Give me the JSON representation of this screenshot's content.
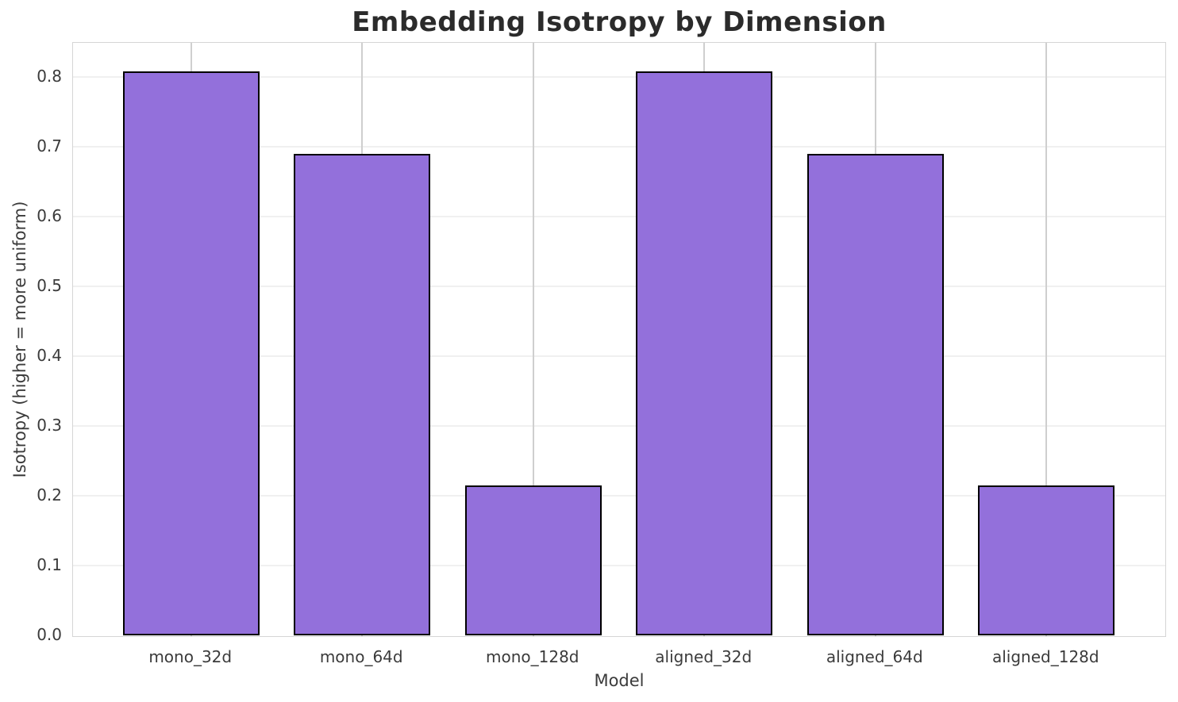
{
  "chart_data": {
    "type": "bar",
    "title": "Embedding Isotropy by Dimension",
    "xlabel": "Model",
    "ylabel": "Isotropy (higher = more uniform)",
    "categories": [
      "mono_32d",
      "mono_64d",
      "mono_128d",
      "aligned_32d",
      "aligned_64d",
      "aligned_128d"
    ],
    "values": [
      0.808,
      0.69,
      0.215,
      0.808,
      0.69,
      0.215
    ],
    "ylim": [
      0,
      0.849
    ],
    "yticks": [
      0.0,
      0.1,
      0.2,
      0.3,
      0.4,
      0.5,
      0.6,
      0.7,
      0.8
    ],
    "ytick_labels": [
      "0.0",
      "0.1",
      "0.2",
      "0.3",
      "0.4",
      "0.5",
      "0.6",
      "0.7",
      "0.8"
    ],
    "grid": true,
    "legend_position": "none",
    "bar_color": "#9370db",
    "bar_edge_color": "#000000"
  },
  "colors": {
    "background": "#ffffff",
    "bar_fill": "#9370db",
    "bar_edge": "#000000",
    "grid_horizontal": "#f0f0f0",
    "grid_vertical": "#cfcfcf",
    "spine": "#d5d5d5",
    "title_text": "#2b2b2b",
    "tick_text": "#3b3b3b"
  }
}
